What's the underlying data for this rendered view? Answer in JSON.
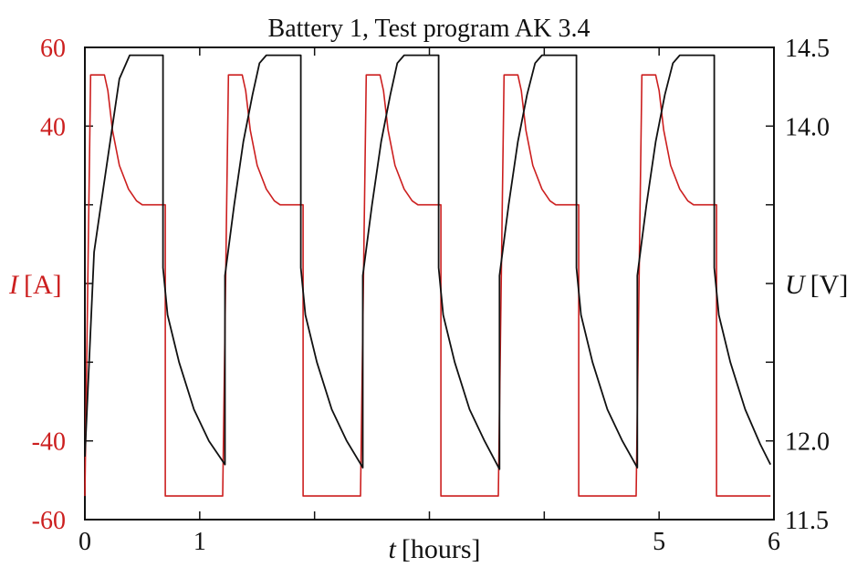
{
  "colors": {
    "current": "#cc1f1f",
    "voltage": "#111111",
    "frame": "#111111",
    "background": "#ffffff"
  },
  "chart_data": {
    "type": "line",
    "title": "Battery 1, Test program AK 3.4",
    "xlabel": {
      "var": "t",
      "unit": "[hours]"
    },
    "ylabel_left": {
      "var": "I",
      "unit": "[A]"
    },
    "ylabel_right": {
      "var": "U",
      "unit": "[V]"
    },
    "xlim": [
      0,
      6
    ],
    "ylim_left": [
      -60,
      60
    ],
    "ylim_right": [
      11.5,
      14.5
    ],
    "x_ticks": [
      0,
      1,
      2,
      3,
      4,
      5,
      6
    ],
    "x_tick_labels": [
      "0",
      "1",
      "",
      "",
      "",
      "5",
      "6"
    ],
    "y_left_ticks": [
      -60,
      -40,
      -20,
      0,
      20,
      40,
      60
    ],
    "y_left_tick_labels": [
      "-60",
      "-40",
      "",
      "",
      "",
      "40",
      "60"
    ],
    "y_right_ticks": [
      11.5,
      12.0,
      12.5,
      13.0,
      13.5,
      14.0,
      14.5
    ],
    "y_right_tick_labels": [
      "11.5",
      "12.0",
      "",
      "",
      "",
      "14.0",
      "14.5"
    ],
    "grid": false,
    "series": [
      {
        "axis": "left",
        "color": "#cc1f1f",
        "points": [
          [
            0.0,
            -54
          ],
          [
            0.05,
            53
          ],
          [
            0.17,
            53
          ],
          [
            0.2,
            49
          ],
          [
            0.24,
            39
          ],
          [
            0.3,
            30
          ],
          [
            0.38,
            24
          ],
          [
            0.45,
            21
          ],
          [
            0.5,
            20
          ],
          [
            0.7,
            20
          ],
          [
            0.7,
            -54
          ],
          [
            1.2,
            -54
          ],
          [
            1.25,
            53
          ],
          [
            1.37,
            53
          ],
          [
            1.4,
            49
          ],
          [
            1.44,
            39
          ],
          [
            1.5,
            30
          ],
          [
            1.58,
            24
          ],
          [
            1.65,
            21
          ],
          [
            1.7,
            20
          ],
          [
            1.9,
            20
          ],
          [
            1.9,
            -54
          ],
          [
            2.4,
            -54
          ],
          [
            2.45,
            53
          ],
          [
            2.57,
            53
          ],
          [
            2.6,
            49
          ],
          [
            2.64,
            39
          ],
          [
            2.7,
            30
          ],
          [
            2.78,
            24
          ],
          [
            2.85,
            21
          ],
          [
            2.9,
            20
          ],
          [
            3.1,
            20
          ],
          [
            3.1,
            -54
          ],
          [
            3.6,
            -54
          ],
          [
            3.65,
            53
          ],
          [
            3.77,
            53
          ],
          [
            3.8,
            49
          ],
          [
            3.84,
            39
          ],
          [
            3.9,
            30
          ],
          [
            3.98,
            24
          ],
          [
            4.05,
            21
          ],
          [
            4.1,
            20
          ],
          [
            4.3,
            20
          ],
          [
            4.3,
            -54
          ],
          [
            4.8,
            -54
          ],
          [
            4.85,
            53
          ],
          [
            4.97,
            53
          ],
          [
            5.0,
            49
          ],
          [
            5.04,
            39
          ],
          [
            5.1,
            30
          ],
          [
            5.18,
            24
          ],
          [
            5.25,
            21
          ],
          [
            5.3,
            20
          ],
          [
            5.5,
            20
          ],
          [
            5.5,
            -54
          ],
          [
            5.97,
            -54
          ]
        ]
      },
      {
        "axis": "right",
        "color": "#111111",
        "points": [
          [
            0.0,
            11.9
          ],
          [
            0.08,
            13.2
          ],
          [
            0.16,
            13.6
          ],
          [
            0.24,
            14.0
          ],
          [
            0.3,
            14.3
          ],
          [
            0.39,
            14.45
          ],
          [
            0.68,
            14.45
          ],
          [
            0.68,
            13.1
          ],
          [
            0.72,
            12.8
          ],
          [
            0.82,
            12.5
          ],
          [
            0.95,
            12.2
          ],
          [
            1.08,
            12.0
          ],
          [
            1.22,
            11.85
          ],
          [
            1.22,
            13.05
          ],
          [
            1.3,
            13.5
          ],
          [
            1.38,
            13.9
          ],
          [
            1.46,
            14.2
          ],
          [
            1.52,
            14.4
          ],
          [
            1.58,
            14.45
          ],
          [
            1.88,
            14.45
          ],
          [
            1.88,
            13.1
          ],
          [
            1.92,
            12.8
          ],
          [
            2.02,
            12.5
          ],
          [
            2.15,
            12.2
          ],
          [
            2.28,
            12.0
          ],
          [
            2.42,
            11.83
          ],
          [
            2.42,
            13.05
          ],
          [
            2.5,
            13.5
          ],
          [
            2.58,
            13.9
          ],
          [
            2.66,
            14.2
          ],
          [
            2.72,
            14.4
          ],
          [
            2.78,
            14.45
          ],
          [
            3.08,
            14.45
          ],
          [
            3.08,
            13.1
          ],
          [
            3.12,
            12.8
          ],
          [
            3.22,
            12.5
          ],
          [
            3.35,
            12.2
          ],
          [
            3.48,
            12.0
          ],
          [
            3.61,
            11.82
          ],
          [
            3.61,
            13.05
          ],
          [
            3.69,
            13.5
          ],
          [
            3.77,
            13.9
          ],
          [
            3.85,
            14.2
          ],
          [
            3.92,
            14.4
          ],
          [
            3.98,
            14.45
          ],
          [
            4.28,
            14.45
          ],
          [
            4.28,
            13.1
          ],
          [
            4.32,
            12.8
          ],
          [
            4.42,
            12.5
          ],
          [
            4.55,
            12.2
          ],
          [
            4.68,
            12.0
          ],
          [
            4.81,
            11.83
          ],
          [
            4.81,
            13.05
          ],
          [
            4.89,
            13.5
          ],
          [
            4.97,
            13.9
          ],
          [
            5.05,
            14.2
          ],
          [
            5.12,
            14.4
          ],
          [
            5.18,
            14.45
          ],
          [
            5.48,
            14.45
          ],
          [
            5.48,
            13.1
          ],
          [
            5.52,
            12.8
          ],
          [
            5.62,
            12.5
          ],
          [
            5.75,
            12.2
          ],
          [
            5.88,
            11.98
          ],
          [
            5.97,
            11.85
          ]
        ]
      }
    ]
  }
}
